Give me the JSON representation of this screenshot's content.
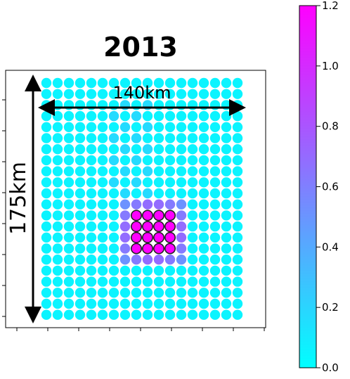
{
  "chart_data": {
    "type": "scatter",
    "title": "2013",
    "grid": {
      "columns": 18,
      "rows": 22,
      "elevated_columns": [
        7,
        8,
        9,
        10,
        11,
        12
      ],
      "elevated_rows": [
        11,
        12,
        13,
        14,
        15,
        16
      ],
      "outlined_columns": [
        8,
        9,
        10,
        11
      ],
      "outlined_rows": [
        12,
        13,
        14,
        15
      ]
    },
    "annotations": {
      "width_label": "140km",
      "height_label": "175km"
    },
    "colorbar": {
      "min": 0.0,
      "max": 1.2,
      "ticks": [
        "0.0",
        "0.2",
        "0.4",
        "0.6",
        "0.8",
        "1.0",
        "1.2"
      ],
      "colors": [
        "#00ffff",
        "#ff00ff"
      ]
    }
  }
}
